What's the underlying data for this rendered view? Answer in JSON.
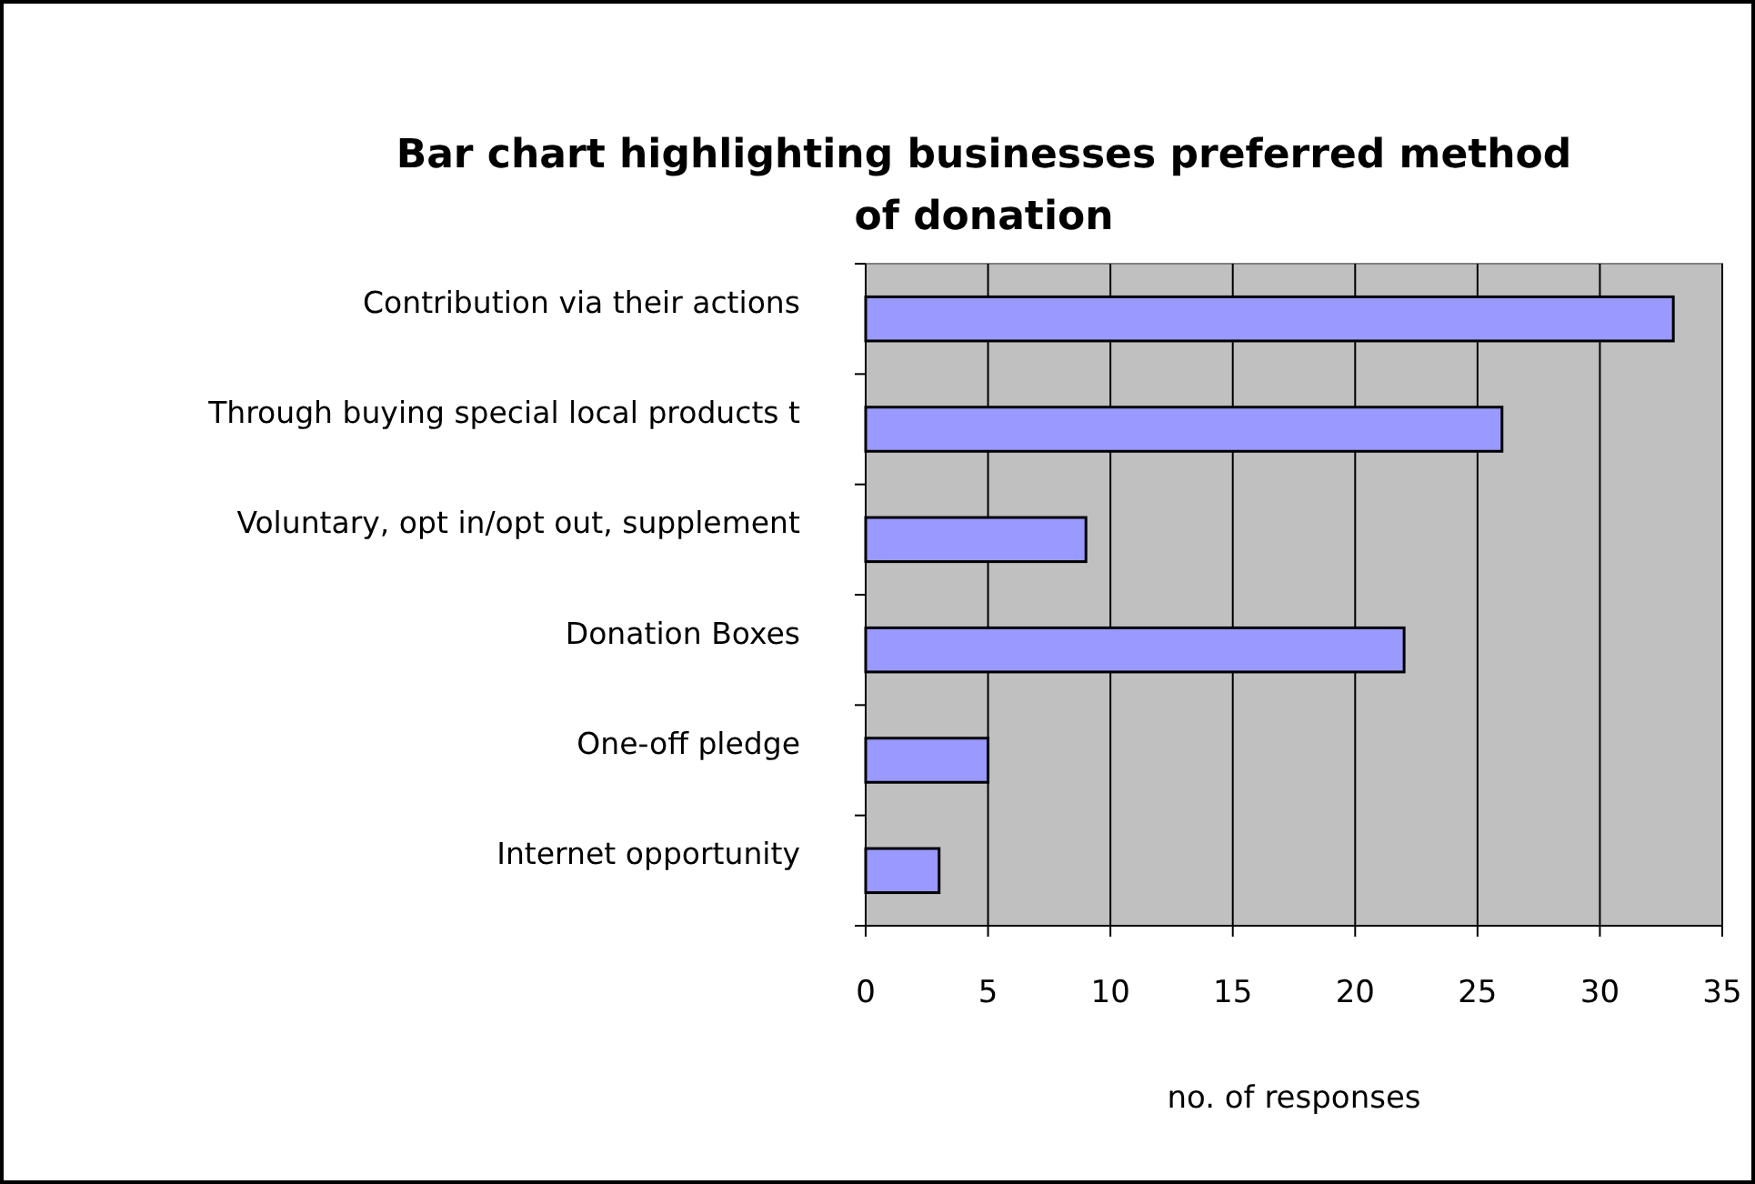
{
  "chart_data": {
    "type": "bar",
    "orientation": "horizontal",
    "title": "Bar chart highlighting businesses preferred method of donation",
    "xlabel": "no. of responses",
    "categories": [
      "Contribution via their actions",
      "Through buying special local products t",
      "Voluntary, opt in/opt out, supplement",
      "Donation Boxes",
      "One-off pledge",
      "Internet opportunity"
    ],
    "values": [
      33,
      26,
      9,
      22,
      5,
      3
    ],
    "color": "#9999ff",
    "xlim": [
      0,
      35
    ],
    "xticks": [
      0,
      5,
      10,
      15,
      20,
      25,
      30,
      35
    ],
    "grid": "x"
  }
}
